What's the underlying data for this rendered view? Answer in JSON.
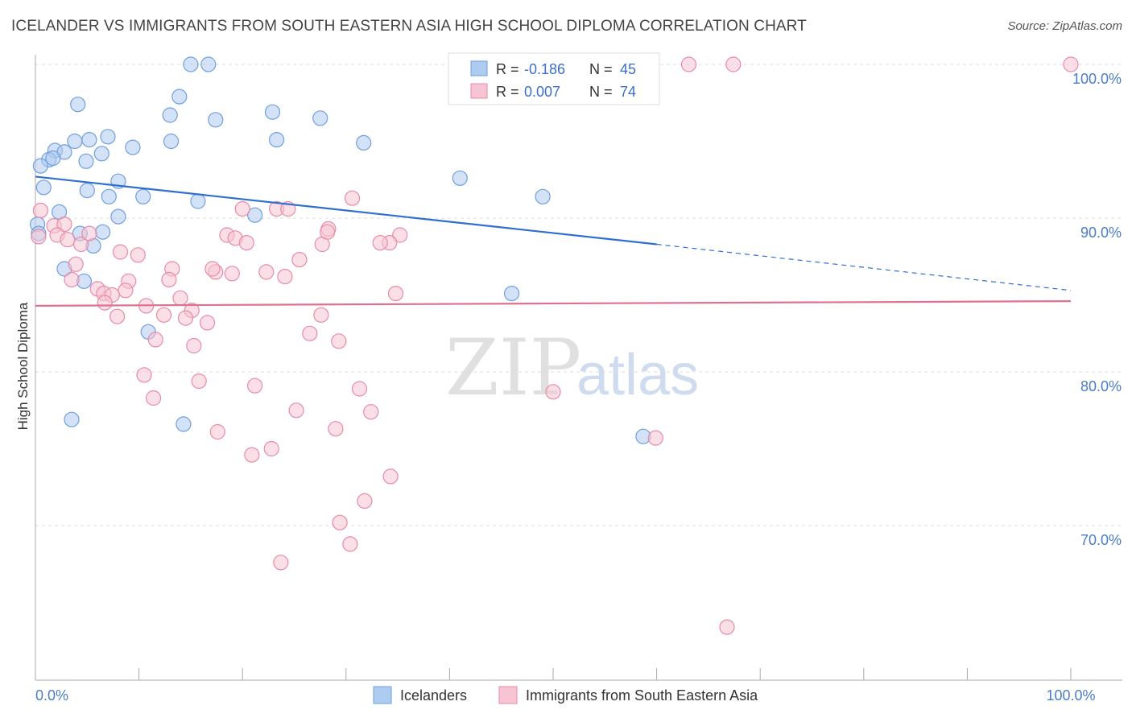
{
  "title": "ICELANDER VS IMMIGRANTS FROM SOUTH EASTERN ASIA HIGH SCHOOL DIPLOMA CORRELATION CHART",
  "source": "Source: ZipAtlas.com",
  "watermark": {
    "zip": "ZIP",
    "atlas": "atlas"
  },
  "colors": {
    "blue_fill": "#aecbf0",
    "blue_stroke": "#6f9fdf",
    "blue_line": "#2f6fd0",
    "pink_fill": "#f7c4d4",
    "pink_stroke": "#e88aa9",
    "pink_line": "#e0708f",
    "tick_text": "#4a7cc9",
    "grid": "#dddddd"
  },
  "legend_box": {
    "rows": [
      {
        "r_label": "R = ",
        "r_value": "-0.186",
        "n_label": "N = ",
        "n_value": "45"
      },
      {
        "r_label": "R = ",
        "r_value": "0.007",
        "n_label": "N = ",
        "n_value": "74"
      }
    ]
  },
  "bottom_legend": [
    "Icelanders",
    "Immigrants from South Eastern Asia"
  ],
  "chart_data": {
    "type": "scatter",
    "title": "ICELANDER VS IMMIGRANTS FROM SOUTH EASTERN ASIA HIGH SCHOOL DIPLOMA CORRELATION CHART",
    "xlabel": "",
    "ylabel": "High School Diploma",
    "xlim": [
      0,
      100
    ],
    "ylim": [
      60,
      101
    ],
    "x_tick_labels": [
      {
        "x": 0,
        "label": "0.0%"
      },
      {
        "x": 100,
        "label": "100.0%"
      }
    ],
    "x_minor_ticks": [
      0,
      10,
      20,
      30,
      40,
      50,
      60,
      70,
      80,
      90,
      100
    ],
    "y_ticks": [
      {
        "y": 100,
        "label": "100.0%"
      },
      {
        "y": 90,
        "label": "90.0%"
      },
      {
        "y": 80,
        "label": "80.0%"
      },
      {
        "y": 70,
        "label": "70.0%"
      }
    ],
    "grid": true,
    "series": [
      {
        "name": "Icelanders",
        "color": "blue",
        "trend": {
          "x0": 0,
          "y0": 92.7,
          "x1": 60,
          "y1": 88.3,
          "dash_to_x": 100,
          "dash_to_y": 85.3
        },
        "points": [
          [
            15,
            100
          ],
          [
            16.7,
            100
          ],
          [
            13.9,
            97.9
          ],
          [
            4.1,
            97.4
          ],
          [
            13,
            96.7
          ],
          [
            22.9,
            96.9
          ],
          [
            17.4,
            96.4
          ],
          [
            27.5,
            96.5
          ],
          [
            3.8,
            95
          ],
          [
            5.2,
            95.1
          ],
          [
            7,
            95.3
          ],
          [
            13.1,
            95
          ],
          [
            23.3,
            95.1
          ],
          [
            31.7,
            94.9
          ],
          [
            9.4,
            94.6
          ],
          [
            1.9,
            94.4
          ],
          [
            2.8,
            94.3
          ],
          [
            6.4,
            94.2
          ],
          [
            1.3,
            93.8
          ],
          [
            1.7,
            93.9
          ],
          [
            4.9,
            93.7
          ],
          [
            0.5,
            93.4
          ],
          [
            41,
            92.6
          ],
          [
            8,
            92.4
          ],
          [
            0.8,
            92
          ],
          [
            5,
            91.8
          ],
          [
            7.1,
            91.4
          ],
          [
            10.4,
            91.4
          ],
          [
            49,
            91.4
          ],
          [
            15.7,
            91.1
          ],
          [
            2.3,
            90.4
          ],
          [
            8,
            90.1
          ],
          [
            21.2,
            90.2
          ],
          [
            0.2,
            89.6
          ],
          [
            0.3,
            89
          ],
          [
            6.5,
            89.1
          ],
          [
            4.3,
            89
          ],
          [
            5.6,
            88.2
          ],
          [
            2.8,
            86.7
          ],
          [
            4.7,
            85.9
          ],
          [
            46,
            85.1
          ],
          [
            10.9,
            82.6
          ],
          [
            3.5,
            76.9
          ],
          [
            14.3,
            76.6
          ],
          [
            58.7,
            75.8
          ]
        ]
      },
      {
        "name": "Immigrants from South Eastern Asia",
        "color": "pink",
        "trend": {
          "x0": 0,
          "y0": 84.3,
          "x1": 100,
          "y1": 84.6
        },
        "points": [
          [
            63.1,
            100
          ],
          [
            67.4,
            100
          ],
          [
            100,
            100
          ],
          [
            0.5,
            90.5
          ],
          [
            0.3,
            88.8
          ],
          [
            1.8,
            89.5
          ],
          [
            2.8,
            89.6
          ],
          [
            2.1,
            88.9
          ],
          [
            3.1,
            88.6
          ],
          [
            4.4,
            88.3
          ],
          [
            5.2,
            89
          ],
          [
            30.6,
            91.3
          ],
          [
            20,
            90.6
          ],
          [
            23.3,
            90.6
          ],
          [
            24.4,
            90.6
          ],
          [
            35.2,
            88.9
          ],
          [
            28.3,
            89.3
          ],
          [
            18.5,
            88.9
          ],
          [
            19.3,
            88.7
          ],
          [
            20.4,
            88.4
          ],
          [
            27.7,
            88.3
          ],
          [
            34.2,
            88.4
          ],
          [
            8.2,
            87.8
          ],
          [
            9.9,
            87.6
          ],
          [
            25.5,
            87.3
          ],
          [
            3.9,
            87
          ],
          [
            13.2,
            86.7
          ],
          [
            17.4,
            86.5
          ],
          [
            17.1,
            86.7
          ],
          [
            19,
            86.4
          ],
          [
            22.3,
            86.5
          ],
          [
            24.1,
            86.2
          ],
          [
            3.5,
            86
          ],
          [
            12.9,
            86
          ],
          [
            9,
            85.9
          ],
          [
            6,
            85.4
          ],
          [
            8.7,
            85.3
          ],
          [
            6.6,
            85.1
          ],
          [
            7.4,
            85
          ],
          [
            34.8,
            85.1
          ],
          [
            14,
            84.8
          ],
          [
            6.7,
            84.5
          ],
          [
            10.7,
            84.3
          ],
          [
            15.1,
            84
          ],
          [
            12.4,
            83.7
          ],
          [
            7.9,
            83.6
          ],
          [
            14.5,
            83.5
          ],
          [
            27.6,
            83.7
          ],
          [
            16.6,
            83.2
          ],
          [
            26.5,
            82.5
          ],
          [
            11.6,
            82.1
          ],
          [
            29.3,
            82
          ],
          [
            15.3,
            81.7
          ],
          [
            10.5,
            79.8
          ],
          [
            15.8,
            79.4
          ],
          [
            21.2,
            79.1
          ],
          [
            31.3,
            78.9
          ],
          [
            50,
            78.7
          ],
          [
            11.4,
            78.3
          ],
          [
            25.2,
            77.5
          ],
          [
            32.4,
            77.4
          ],
          [
            17.6,
            76.1
          ],
          [
            29,
            76.3
          ],
          [
            59.9,
            75.7
          ],
          [
            22.8,
            75
          ],
          [
            20.9,
            74.6
          ],
          [
            34.3,
            73.2
          ],
          [
            31.8,
            71.6
          ],
          [
            29.4,
            70.2
          ],
          [
            30.4,
            68.8
          ],
          [
            23.7,
            67.6
          ],
          [
            66.8,
            63.4
          ],
          [
            28.2,
            89.1
          ],
          [
            33.3,
            88.4
          ]
        ]
      }
    ]
  }
}
